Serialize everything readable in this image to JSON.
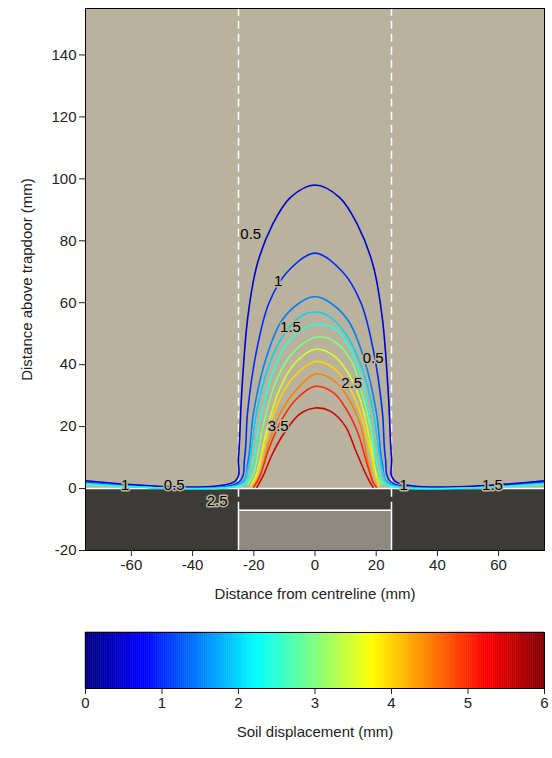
{
  "chart_data": {
    "type": "contour",
    "x_label": "Distance from centreline (mm)",
    "y_label": "Distance above trapdoor (mm)",
    "xlim": [
      -75,
      75
    ],
    "xticks": [
      -60,
      -40,
      -20,
      0,
      20,
      40,
      60
    ],
    "ylim": [
      -20,
      155
    ],
    "yticks": [
      -20,
      0,
      20,
      40,
      60,
      80,
      100,
      120,
      140
    ],
    "surface_level": 0,
    "trapdoor_edges": [
      -25,
      25
    ],
    "trapdoor_base": -7,
    "series": [
      {
        "level": 0.5,
        "color": "#0000d4",
        "points": [
          [
            -75,
            2.5
          ],
          [
            -26,
            2.5
          ],
          [
            -25,
            10
          ],
          [
            -24,
            30
          ],
          [
            -22,
            55
          ],
          [
            -19,
            72
          ],
          [
            -14,
            85
          ],
          [
            -8,
            94
          ],
          [
            0,
            98
          ],
          [
            8,
            94
          ],
          [
            14,
            85
          ],
          [
            19,
            72
          ],
          [
            22,
            55
          ],
          [
            24,
            30
          ],
          [
            25,
            10
          ],
          [
            26,
            2.5
          ],
          [
            75,
            2.5
          ]
        ]
      },
      {
        "level": 1,
        "color": "#002bff",
        "points": [
          [
            -75,
            2
          ],
          [
            -25,
            2
          ],
          [
            -23,
            10
          ],
          [
            -22,
            25
          ],
          [
            -19,
            45
          ],
          [
            -15,
            60
          ],
          [
            -9,
            70
          ],
          [
            0,
            76
          ],
          [
            9,
            70
          ],
          [
            15,
            60
          ],
          [
            19,
            45
          ],
          [
            22,
            25
          ],
          [
            23,
            10
          ],
          [
            25,
            2
          ],
          [
            75,
            2
          ]
        ]
      },
      {
        "level": 1.5,
        "color": "#0080ff",
        "points": [
          [
            -75,
            1.8
          ],
          [
            -24,
            1.8
          ],
          [
            -22,
            8
          ],
          [
            -20,
            25
          ],
          [
            -16,
            42
          ],
          [
            -11,
            54
          ],
          [
            -5,
            60
          ],
          [
            0,
            62
          ],
          [
            5,
            60
          ],
          [
            11,
            54
          ],
          [
            16,
            42
          ],
          [
            20,
            25
          ],
          [
            22,
            8
          ],
          [
            24,
            1.8
          ],
          [
            75,
            1.8
          ]
        ]
      },
      {
        "level": 2,
        "color": "#00d4ff",
        "points": [
          [
            -75,
            1.6
          ],
          [
            -24,
            1.6
          ],
          [
            -22,
            6
          ],
          [
            -19,
            25
          ],
          [
            -15,
            40
          ],
          [
            -10,
            50
          ],
          [
            -4,
            56
          ],
          [
            0,
            57
          ],
          [
            4,
            56
          ],
          [
            10,
            50
          ],
          [
            15,
            40
          ],
          [
            19,
            25
          ],
          [
            22,
            6
          ],
          [
            24,
            1.6
          ],
          [
            75,
            1.6
          ]
        ]
      },
      {
        "level": 2.5,
        "color": "#2bffd4",
        "points": [
          [
            -75,
            1.4
          ],
          [
            -23,
            1.4
          ],
          [
            -21,
            5
          ],
          [
            -18,
            22
          ],
          [
            -14,
            37
          ],
          [
            -9,
            47
          ],
          [
            -3,
            52
          ],
          [
            1,
            53
          ],
          [
            6,
            52
          ],
          [
            11,
            46
          ],
          [
            15,
            36
          ],
          [
            18,
            22
          ],
          [
            21,
            5
          ],
          [
            23,
            1.4
          ],
          [
            75,
            1.4
          ]
        ]
      },
      {
        "level": 3,
        "color": "#80ff80",
        "points": [
          [
            -22,
            1.2
          ],
          [
            -20,
            5
          ],
          [
            -17,
            20
          ],
          [
            -13,
            34
          ],
          [
            -8,
            43
          ],
          [
            -2,
            48
          ],
          [
            2,
            49
          ],
          [
            7,
            47
          ],
          [
            12,
            41
          ],
          [
            15,
            32
          ],
          [
            18,
            20
          ],
          [
            20,
            5
          ],
          [
            22,
            1.2
          ]
        ]
      },
      {
        "level": 3.5,
        "color": "#d4ff2b",
        "points": [
          [
            -21,
            1
          ],
          [
            -19,
            5
          ],
          [
            -16,
            18
          ],
          [
            -12,
            31
          ],
          [
            -7,
            40
          ],
          [
            0,
            45
          ],
          [
            6,
            43
          ],
          [
            11,
            37
          ],
          [
            15,
            28
          ],
          [
            18,
            15
          ],
          [
            20,
            4
          ],
          [
            21,
            1
          ]
        ]
      },
      {
        "level": 4,
        "color": "#ffd400",
        "points": [
          [
            -21,
            0.8
          ],
          [
            -19,
            4
          ],
          [
            -16,
            16
          ],
          [
            -12,
            28
          ],
          [
            -7,
            36
          ],
          [
            0,
            41
          ],
          [
            6,
            39
          ],
          [
            11,
            33
          ],
          [
            15,
            24
          ],
          [
            18,
            12
          ],
          [
            20,
            3
          ],
          [
            21,
            0.8
          ]
        ]
      },
      {
        "level": 4.5,
        "color": "#ff8000",
        "points": [
          [
            -20,
            0.6
          ],
          [
            -18,
            4
          ],
          [
            -15,
            15
          ],
          [
            -11,
            25
          ],
          [
            -6,
            32
          ],
          [
            0,
            37
          ],
          [
            6,
            35
          ],
          [
            11,
            29
          ],
          [
            15,
            20
          ],
          [
            17,
            10
          ],
          [
            19,
            2
          ],
          [
            20,
            0.6
          ]
        ]
      },
      {
        "level": 5,
        "color": "#ff2b00",
        "points": [
          [
            -20,
            0.5
          ],
          [
            -18,
            4
          ],
          [
            -15,
            13
          ],
          [
            -11,
            22
          ],
          [
            -6,
            29
          ],
          [
            0,
            33
          ],
          [
            6,
            31
          ],
          [
            10,
            26
          ],
          [
            14,
            18
          ],
          [
            17,
            8
          ],
          [
            19,
            2
          ],
          [
            20,
            0.5
          ]
        ]
      },
      {
        "level": 5.5,
        "color": "#d40000",
        "points": [
          [
            -19,
            0.4
          ],
          [
            -17,
            4
          ],
          [
            -14,
            11
          ],
          [
            -10,
            18
          ],
          [
            -5,
            24
          ],
          [
            0,
            26
          ],
          [
            5,
            25
          ],
          [
            10,
            20
          ],
          [
            13,
            13
          ],
          [
            16,
            6
          ],
          [
            18,
            2
          ],
          [
            19,
            0.4
          ]
        ]
      }
    ],
    "annotations": [
      {
        "text": "0.5",
        "x": -21,
        "y": 82
      },
      {
        "text": "1",
        "x": -12,
        "y": 67
      },
      {
        "text": "1.5",
        "x": -8,
        "y": 52
      },
      {
        "text": "0.5",
        "x": 19,
        "y": 42
      },
      {
        "text": "2.5",
        "x": 12,
        "y": 34
      },
      {
        "text": "3.5",
        "x": -12,
        "y": 20
      },
      {
        "text": "1",
        "x": -62,
        "y": 1
      },
      {
        "text": "0.5",
        "x": -46,
        "y": 1
      },
      {
        "text": "2.5",
        "x": -32,
        "y": -4
      },
      {
        "text": "1",
        "x": 29,
        "y": 1
      },
      {
        "text": "1.5",
        "x": 58,
        "y": 1
      }
    ],
    "colorbar": {
      "label": "Soil displacement (mm)",
      "range": [
        0,
        6
      ],
      "ticks": [
        0,
        1,
        2,
        3,
        4,
        5,
        6
      ]
    }
  }
}
